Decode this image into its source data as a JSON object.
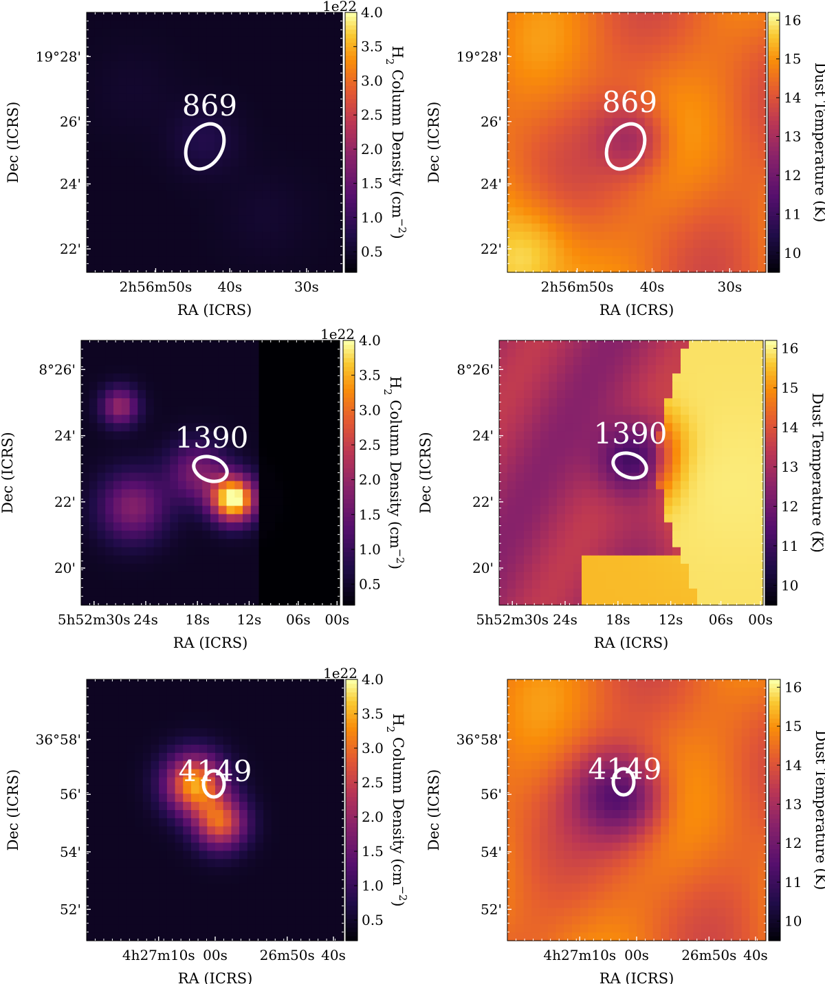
{
  "figure": {
    "colormap": "inferno",
    "ellipse_color": "#ffffff"
  },
  "chart_data": [
    {
      "type": "heatmap",
      "panel": "column-density",
      "source_label": "869",
      "title": "",
      "xlabel": "RA (ICRS)",
      "ylabel": "Dec (ICRS)",
      "x_ticks": [
        {
          "value": "50",
          "label": "2h56m50s"
        },
        {
          "value": "40",
          "label": "40s"
        },
        {
          "value": "30",
          "label": "30s"
        }
      ],
      "y_ticks": [
        "19°28'",
        "26'",
        "24'",
        "22'"
      ],
      "colorbar": {
        "label": "H2 Column Density (cm^-2)",
        "exponent_label": "1e22",
        "min": 0.2,
        "max": 4.0,
        "ticks": [
          "0.5",
          "1.0",
          "1.5",
          "2.0",
          "2.5",
          "3.0",
          "3.5",
          "4.0"
        ]
      },
      "features": [
        {
          "kind": "peak",
          "x": 0.46,
          "y": 0.49,
          "level": 0.55,
          "sigma": 0.09
        },
        {
          "kind": "blob",
          "x": 0.18,
          "y": 0.3,
          "level": 0.3,
          "sigma": 0.12
        },
        {
          "kind": "blob",
          "x": 0.7,
          "y": 0.78,
          "level": 0.32,
          "sigma": 0.12
        }
      ]
    },
    {
      "type": "heatmap",
      "panel": "dust-temperature",
      "source_label": "869",
      "title": "",
      "xlabel": "RA (ICRS)",
      "ylabel": "Dec (ICRS)",
      "x_ticks": [
        {
          "value": "50",
          "label": "2h56m50s"
        },
        {
          "value": "40",
          "label": "40s"
        },
        {
          "value": "30",
          "label": "30s"
        }
      ],
      "y_ticks": [
        "19°28'",
        "26'",
        "24'",
        "22'"
      ],
      "colorbar": {
        "label": "Dust Temperature (K)",
        "exponent_label": "",
        "min": 9.5,
        "max": 16.2,
        "ticks": [
          "10",
          "11",
          "12",
          "13",
          "14",
          "15",
          "16"
        ]
      },
      "features": [
        {
          "kind": "cold",
          "x": 0.46,
          "y": 0.49,
          "level": 13.0,
          "sigma": 0.1
        },
        {
          "kind": "warm",
          "x": 0.05,
          "y": 0.95,
          "level": 15.8,
          "sigma": 0.15
        }
      ]
    },
    {
      "type": "heatmap",
      "panel": "column-density",
      "source_label": "1390",
      "title": "",
      "xlabel": "RA (ICRS)",
      "ylabel": "Dec (ICRS)",
      "x_ticks": [
        {
          "value": "30",
          "label": "5h52m30s"
        },
        {
          "value": "24",
          "label": "24s"
        },
        {
          "value": "18",
          "label": "18s"
        },
        {
          "value": "12",
          "label": "12s"
        },
        {
          "value": "06",
          "label": "06s"
        },
        {
          "value": "00",
          "label": "00s"
        }
      ],
      "y_ticks": [
        "8°26'",
        "24'",
        "22'",
        "20'"
      ],
      "colorbar": {
        "label": "H2 Column Density (cm^-2)",
        "exponent_label": "1e22",
        "min": 0.2,
        "max": 4.0,
        "ticks": [
          "0.5",
          "1.0",
          "1.5",
          "2.0",
          "2.5",
          "3.0",
          "3.5",
          "4.0"
        ]
      },
      "features": [
        {
          "kind": "peak",
          "x": 0.59,
          "y": 0.6,
          "level": 4.0,
          "sigma": 0.06
        },
        {
          "kind": "blob",
          "x": 0.15,
          "y": 0.25,
          "level": 1.8,
          "sigma": 0.05
        },
        {
          "kind": "blob",
          "x": 0.2,
          "y": 0.63,
          "level": 1.6,
          "sigma": 0.09
        },
        {
          "kind": "blob",
          "x": 0.45,
          "y": 0.5,
          "level": 1.5,
          "sigma": 0.08
        }
      ]
    },
    {
      "type": "heatmap",
      "panel": "dust-temperature",
      "source_label": "1390",
      "title": "",
      "xlabel": "RA (ICRS)",
      "ylabel": "Dec (ICRS)",
      "x_ticks": [
        {
          "value": "30",
          "label": "5h52m30s"
        },
        {
          "value": "24",
          "label": "24s"
        },
        {
          "value": "18",
          "label": "18s"
        },
        {
          "value": "12",
          "label": "12s"
        },
        {
          "value": "06",
          "label": "06s"
        },
        {
          "value": "00",
          "label": "00s"
        }
      ],
      "y_ticks": [
        "8°26'",
        "24'",
        "22'",
        "20'"
      ],
      "colorbar": {
        "label": "Dust Temperature (K)",
        "exponent_label": "",
        "min": 9.5,
        "max": 16.2,
        "ticks": [
          "10",
          "11",
          "12",
          "13",
          "14",
          "15",
          "16"
        ]
      },
      "features": [
        {
          "kind": "cold",
          "x": 0.52,
          "y": 0.45,
          "level": 10.5,
          "sigma": 0.1
        },
        {
          "kind": "warm",
          "x": 0.9,
          "y": 0.55,
          "level": 16.0,
          "sigma": 0.2
        }
      ]
    },
    {
      "type": "heatmap",
      "panel": "column-density",
      "source_label": "4149",
      "title": "",
      "xlabel": "RA (ICRS)",
      "ylabel": "Dec (ICRS)",
      "x_ticks": [
        {
          "value": "10",
          "label": "4h27m10s"
        },
        {
          "value": "00",
          "label": "00s"
        },
        {
          "value": "50",
          "label": "26m50s"
        },
        {
          "value": "40",
          "label": "40s"
        }
      ],
      "y_ticks": [
        "36°58'",
        "56'",
        "54'",
        "52'"
      ],
      "colorbar": {
        "label": "H2 Column Density (cm^-2)",
        "exponent_label": "1e22",
        "min": 0.2,
        "max": 4.0,
        "ticks": [
          "0.5",
          "1.0",
          "1.5",
          "2.0",
          "2.5",
          "3.0",
          "3.5",
          "4.0"
        ]
      },
      "features": [
        {
          "kind": "peak",
          "x": 0.42,
          "y": 0.4,
          "level": 3.2,
          "sigma": 0.08
        },
        {
          "kind": "blob",
          "x": 0.52,
          "y": 0.55,
          "level": 2.6,
          "sigma": 0.07
        }
      ]
    },
    {
      "type": "heatmap",
      "panel": "dust-temperature",
      "source_label": "4149",
      "title": "",
      "xlabel": "RA (ICRS)",
      "ylabel": "Dec (ICRS)",
      "x_ticks": [
        {
          "value": "10",
          "label": "4h27m10s"
        },
        {
          "value": "00",
          "label": "00s"
        },
        {
          "value": "50",
          "label": "26m50s"
        },
        {
          "value": "40",
          "label": "40s"
        }
      ],
      "y_ticks": [
        "36°58'",
        "56'",
        "54'",
        "52'"
      ],
      "colorbar": {
        "label": "Dust Temperature (K)",
        "exponent_label": "",
        "min": 9.5,
        "max": 16.2,
        "ticks": [
          "10",
          "11",
          "12",
          "13",
          "14",
          "15",
          "16"
        ]
      },
      "features": [
        {
          "kind": "cold",
          "x": 0.42,
          "y": 0.45,
          "level": 11.5,
          "sigma": 0.12
        }
      ]
    }
  ]
}
